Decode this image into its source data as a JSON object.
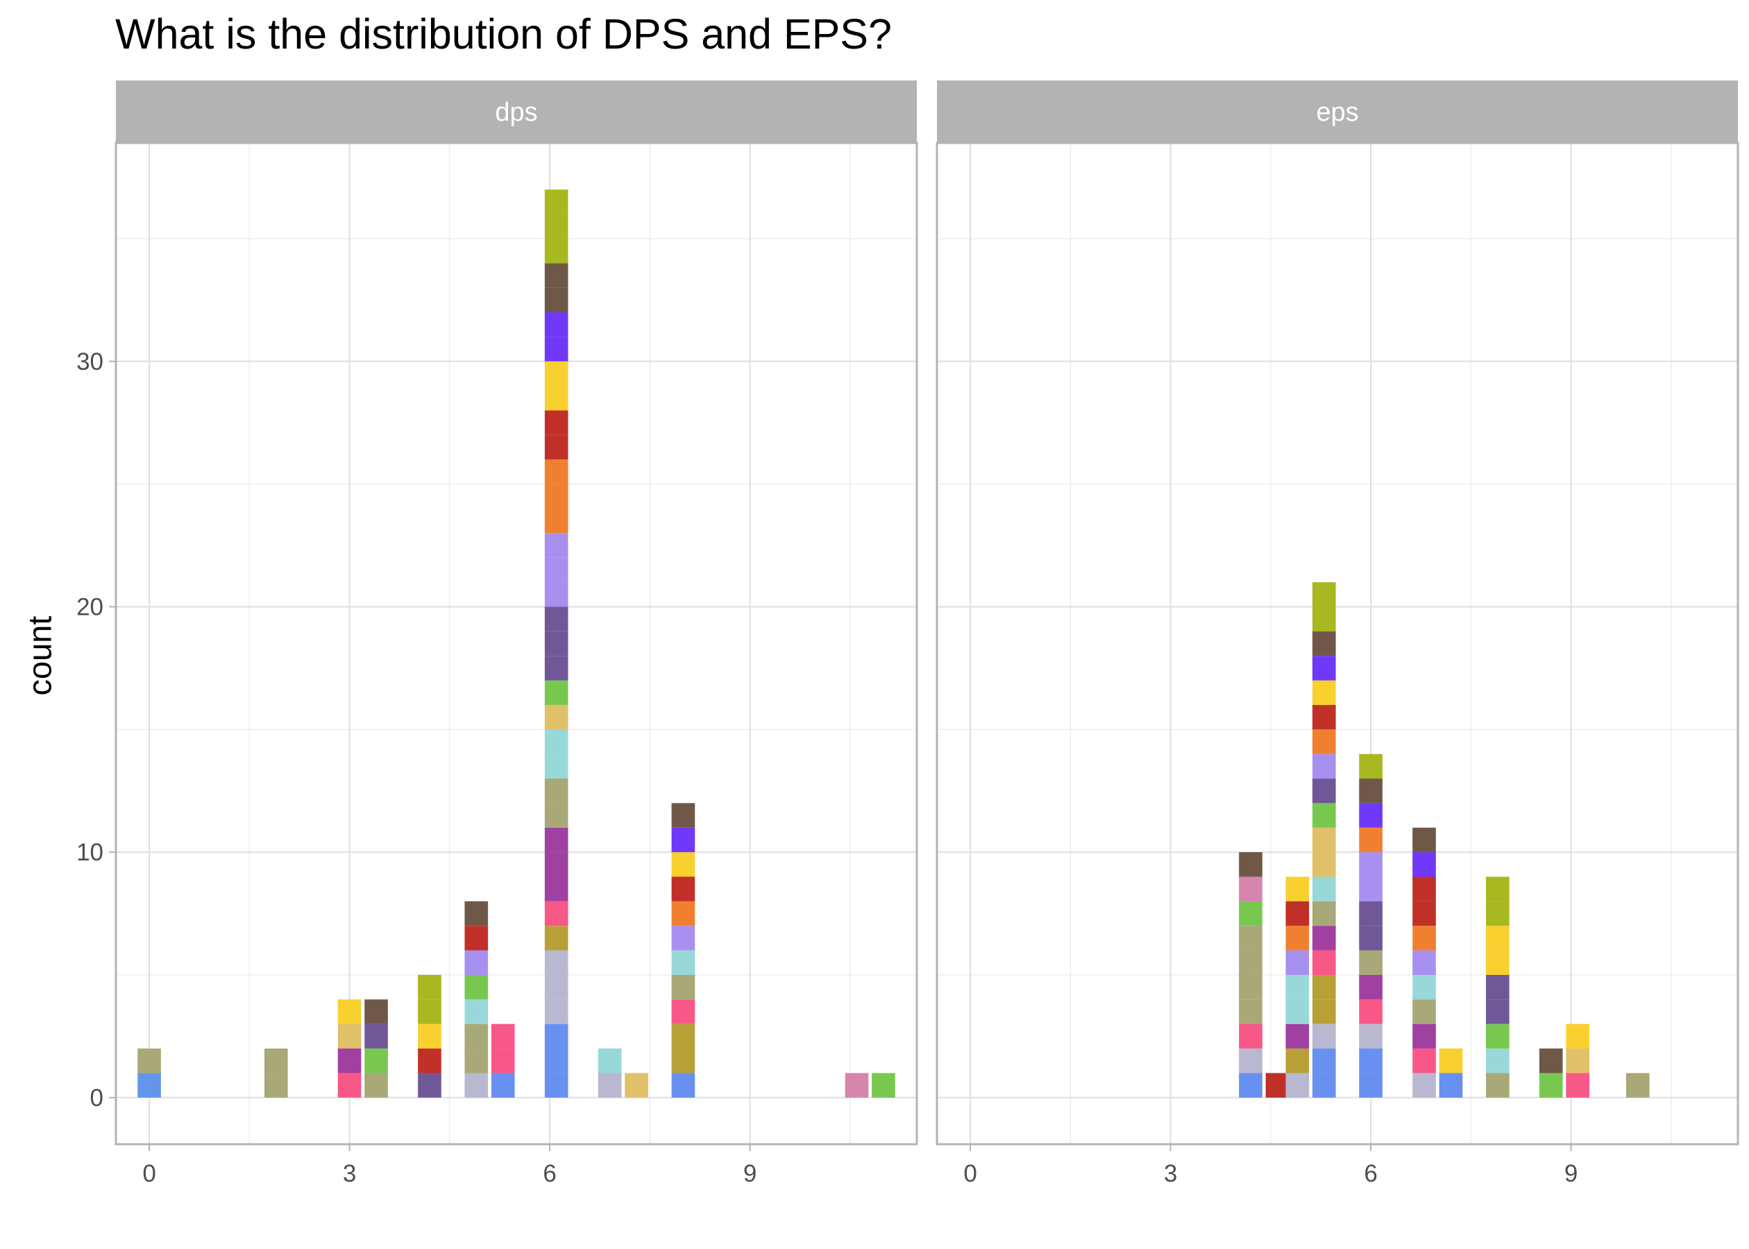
{
  "title": "What is the distribution of DPS and EPS?",
  "chart_data": {
    "type": "bar",
    "stacked": true,
    "faceted": true,
    "title": "What is the distribution of DPS and EPS?",
    "xlabel": "",
    "ylabel": "count",
    "xlim": [
      -0.5,
      11.5
    ],
    "ylim": [
      -1.9,
      38.9
    ],
    "x_ticks": [
      "0",
      "3",
      "6",
      "9"
    ],
    "y_ticks": [
      "0",
      "10",
      "20",
      "30"
    ],
    "grid": true,
    "legend": "none",
    "facets": [
      {
        "label": "dps",
        "bars": [
          {
            "x": 0.0,
            "stack": [
              "#6495ed",
              "#a8a878"
            ]
          },
          {
            "x": 1.9,
            "stack": [
              "#a8a878",
              "#a8a878"
            ]
          },
          {
            "x": 3.0,
            "stack": [
              "#f85888",
              "#a040a0",
              "#e0c068",
              "#f8d030"
            ]
          },
          {
            "x": 3.4,
            "stack": [
              "#a8a878",
              "#78c850",
              "#705898",
              "#705848"
            ]
          },
          {
            "x": 4.2,
            "stack": [
              "#705898",
              "#c03028",
              "#f8d030",
              "#a8b820",
              "#a8b820"
            ]
          },
          {
            "x": 4.9,
            "stack": [
              "#b8b8d0",
              "#a8a878",
              "#a8a878",
              "#98d8d8",
              "#78c850",
              "#a890f0",
              "#c03028",
              "#705848"
            ]
          },
          {
            "x": 5.3,
            "stack": [
              "#6890f0",
              "#f85888",
              "#f85888"
            ]
          },
          {
            "x": 6.1,
            "stack": [
              "#6890f0",
              "#6890f0",
              "#6890f0",
              "#b8b8d0",
              "#b8b8d0",
              "#b8b8d0",
              "#b8a038",
              "#f85888",
              "#a040a0",
              "#a040a0",
              "#a040a0",
              "#a8a878",
              "#a8a878",
              "#98d8d8",
              "#98d8d8",
              "#e0c068",
              "#78c850",
              "#705898",
              "#705898",
              "#705898",
              "#a890f0",
              "#a890f0",
              "#a890f0",
              "#f08030",
              "#f08030",
              "#f08030",
              "#c03028",
              "#c03028",
              "#f8d030",
              "#f8d030",
              "#7038f8",
              "#7038f8",
              "#705848",
              "#705848",
              "#a8b820",
              "#a8b820",
              "#a8b820"
            ]
          },
          {
            "x": 6.9,
            "stack": [
              "#b8b8d0",
              "#98d8d8"
            ]
          },
          {
            "x": 7.3,
            "stack": [
              "#e0c068"
            ]
          },
          {
            "x": 8.0,
            "stack": [
              "#6890f0",
              "#b8a038",
              "#b8a038",
              "#f85888",
              "#a8a878",
              "#98d8d8",
              "#a890f0",
              "#f08030",
              "#c03028",
              "#f8d030",
              "#7038f8",
              "#705848"
            ]
          },
          {
            "x": 10.6,
            "stack": [
              "#d685ad"
            ]
          },
          {
            "x": 11.0,
            "stack": [
              "#78c850"
            ]
          }
        ]
      },
      {
        "label": "eps",
        "bars": [
          {
            "x": 4.2,
            "stack": [
              "#6890f0",
              "#b8b8d0",
              "#f85888",
              "#a8a878",
              "#a8a878",
              "#a8a878",
              "#a8a878",
              "#78c850",
              "#d685ad",
              "#705848"
            ]
          },
          {
            "x": 4.6,
            "stack": [
              "#c03028"
            ]
          },
          {
            "x": 4.9,
            "stack": [
              "#b8b8d0",
              "#b8a038",
              "#a040a0",
              "#98d8d8",
              "#98d8d8",
              "#a890f0",
              "#f08030",
              "#c03028",
              "#f8d030"
            ]
          },
          {
            "x": 5.3,
            "stack": [
              "#6890f0",
              "#6890f0",
              "#b8b8d0",
              "#b8a038",
              "#b8a038",
              "#f85888",
              "#a040a0",
              "#a8a878",
              "#98d8d8",
              "#e0c068",
              "#e0c068",
              "#78c850",
              "#705898",
              "#a890f0",
              "#f08030",
              "#c03028",
              "#f8d030",
              "#7038f8",
              "#705848",
              "#a8b820",
              "#a8b820"
            ]
          },
          {
            "x": 6.0,
            "stack": [
              "#6890f0",
              "#6890f0",
              "#b8b8d0",
              "#f85888",
              "#a040a0",
              "#a8a878",
              "#705898",
              "#705898",
              "#a890f0",
              "#a890f0",
              "#f08030",
              "#7038f8",
              "#705848",
              "#a8b820"
            ]
          },
          {
            "x": 6.8,
            "stack": [
              "#b8b8d0",
              "#f85888",
              "#a040a0",
              "#a8a878",
              "#98d8d8",
              "#a890f0",
              "#f08030",
              "#c03028",
              "#c03028",
              "#7038f8",
              "#705848"
            ]
          },
          {
            "x": 7.2,
            "stack": [
              "#6890f0",
              "#f8d030"
            ]
          },
          {
            "x": 7.9,
            "stack": [
              "#a8a878",
              "#98d8d8",
              "#78c850",
              "#705898",
              "#705898",
              "#f8d030",
              "#f8d030",
              "#a8b820",
              "#a8b820"
            ]
          },
          {
            "x": 8.7,
            "stack": [
              "#78c850",
              "#705848"
            ]
          },
          {
            "x": 9.1,
            "stack": [
              "#f85888",
              "#e0c068",
              "#f8d030"
            ]
          },
          {
            "x": 10.0,
            "stack": [
              "#a8a878"
            ]
          }
        ]
      }
    ]
  }
}
